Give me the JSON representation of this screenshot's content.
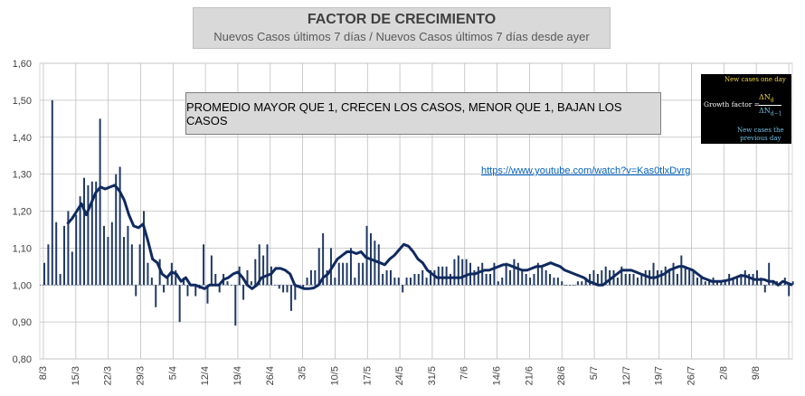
{
  "chart_data": {
    "type": "bar",
    "title": "FACTOR DE CRECIMIENTO",
    "subtitle": "Nuevos Casos últimos 7 días / Nuevos Casos últimos 7 días desde ayer",
    "annotation": "PROMEDIO MAYOR QUE 1, CRECEN LOS CASOS, MENOR QUE 1, BAJAN LOS CASOS",
    "link": "https://www.youtube.com/watch?v=Kas0tlxDvrg",
    "formula": {
      "label_top": "New cases one day",
      "lhs": "Growth factor =",
      "numerator": "ΔN",
      "numerator_sub": "d",
      "denominator": "ΔN",
      "denominator_sub": "d−1",
      "label_bottom_1": "New cases the",
      "label_bottom_2": "previous day"
    },
    "ylim": [
      0.8,
      1.6
    ],
    "yticks": [
      "0,80",
      "0,90",
      "1,00",
      "1,10",
      "1,20",
      "1,30",
      "1,40",
      "1,50",
      "1,60"
    ],
    "baseline": 1.0,
    "grid": true,
    "colors": {
      "bars": "#1f3864",
      "average": "#0f2a5f",
      "grid": "#bfbfbf"
    },
    "x_ticks": [
      "8/3",
      "15/3",
      "22/3",
      "29/3",
      "5/4",
      "12/4",
      "19/4",
      "26/4",
      "3/5",
      "10/5",
      "17/5",
      "24/5",
      "31/5",
      "7/6",
      "14/6",
      "21/6",
      "28/6",
      "5/7",
      "12/7",
      "19/7",
      "26/7",
      "2/8",
      "9/8"
    ],
    "series": [
      {
        "kind": "bar",
        "values": [
          1.06,
          1.11,
          1.5,
          1.17,
          1.03,
          1.16,
          1.2,
          1.09,
          1.19,
          1.24,
          1.29,
          1.27,
          1.28,
          1.28,
          1.45,
          1.16,
          1.13,
          1.17,
          1.3,
          1.32,
          1.13,
          1.16,
          1.11,
          0.97,
          1.11,
          1.2,
          1.06,
          1.02,
          0.94,
          1.07,
          0.98,
          1.02,
          1.06,
          1.04,
          0.9,
          1.02,
          0.97,
          1.0,
          0.97,
          0.99,
          1.11,
          0.95,
          1.08,
          1.03,
          0.98,
          1.03,
          1.01,
          1.0,
          0.89,
          1.05,
          0.96,
          1.04,
          1.01,
          1.07,
          1.11,
          1.08,
          1.11,
          1.05,
          1.0,
          0.99,
          0.98,
          0.98,
          0.93,
          0.96,
          1.0,
          0.99,
          1.02,
          1.04,
          1.04,
          1.1,
          1.14,
          1.04,
          1.1,
          1.02,
          1.06,
          1.06,
          1.06,
          1.1,
          1.02,
          1.06,
          1.06,
          1.16,
          1.14,
          1.12,
          1.11,
          1.03,
          1.04,
          1.04,
          1.02,
          1.02,
          0.98,
          1.02,
          1.02,
          1.03,
          1.03,
          1.04,
          1.02,
          1.04,
          1.04,
          1.05,
          1.05,
          1.05,
          1.03,
          1.07,
          1.08,
          1.07,
          1.07,
          1.06,
          1.04,
          1.05,
          1.06,
          1.03,
          1.03,
          1.06,
          1.01,
          1.02,
          1.06,
          1.04,
          1.07,
          1.06,
          1.04,
          1.03,
          1.02,
          1.03,
          1.06,
          1.05,
          1.04,
          1.03,
          1.02,
          1.02,
          1.01,
          1.0,
          1.0,
          1.0,
          1.01,
          1.01,
          1.02,
          1.03,
          1.04,
          1.03,
          1.04,
          1.05,
          1.04,
          1.04,
          1.02,
          1.05,
          1.03,
          1.03,
          1.03,
          1.02,
          1.03,
          1.04,
          1.04,
          1.06,
          1.04,
          1.04,
          1.05,
          1.04,
          1.06,
          1.03,
          1.08,
          1.05,
          1.04,
          1.04,
          1.02,
          1.02,
          1.01,
          1.01,
          1.02,
          1.01,
          1.01,
          1.01,
          1.03,
          1.02,
          1.02,
          1.03,
          1.04,
          1.03,
          1.03,
          1.04,
          1.02,
          0.98,
          1.06,
          1.01,
          1.01,
          1.0,
          1.02,
          0.97,
          1.01
        ]
      },
      {
        "kind": "line",
        "name": "",
        "values": [
          1.165,
          1.18,
          1.2,
          1.22,
          1.19,
          1.22,
          1.25,
          1.265,
          1.26,
          1.265,
          1.27,
          1.255,
          1.23,
          1.19,
          1.16,
          1.155,
          1.165,
          1.12,
          1.07,
          1.06,
          1.03,
          1.02,
          1.035,
          1.03,
          1.01,
          1.02,
          1.0,
          1.0,
          0.995,
          0.99,
          1.0,
          1.0,
          1.0,
          1.015,
          1.02,
          1.03,
          1.035,
          1.02,
          1.0,
          0.99,
          1.0,
          1.02,
          1.025,
          1.03,
          1.045,
          1.045,
          1.04,
          1.03,
          1.0,
          0.995,
          0.99,
          0.99,
          0.992,
          1.0,
          1.02,
          1.03,
          1.05,
          1.07,
          1.08,
          1.09,
          1.09,
          1.085,
          1.09,
          1.075,
          1.07,
          1.065,
          1.06,
          1.055,
          1.07,
          1.08,
          1.095,
          1.11,
          1.105,
          1.09,
          1.07,
          1.06,
          1.04,
          1.03,
          1.02,
          1.02,
          1.02,
          1.02,
          1.02,
          1.02,
          1.025,
          1.03,
          1.03,
          1.035,
          1.04,
          1.04,
          1.045,
          1.05,
          1.055,
          1.055,
          1.05,
          1.045,
          1.04,
          1.04,
          1.045,
          1.05,
          1.05,
          1.055,
          1.06,
          1.055,
          1.05,
          1.04,
          1.035,
          1.03,
          1.025,
          1.02,
          1.01,
          1.005,
          1.0,
          1.0,
          1.01,
          1.02,
          1.03,
          1.04,
          1.04,
          1.04,
          1.035,
          1.03,
          1.025,
          1.02,
          1.02,
          1.025,
          1.03,
          1.04,
          1.045,
          1.05,
          1.05,
          1.045,
          1.04,
          1.03,
          1.02,
          1.015,
          1.01,
          1.01,
          1.01,
          1.012,
          1.015,
          1.02,
          1.025,
          1.025,
          1.02,
          1.015,
          1.015,
          1.015,
          1.01,
          1.01,
          1.0,
          1.01,
          1.005,
          1.0
        ]
      }
    ]
  }
}
